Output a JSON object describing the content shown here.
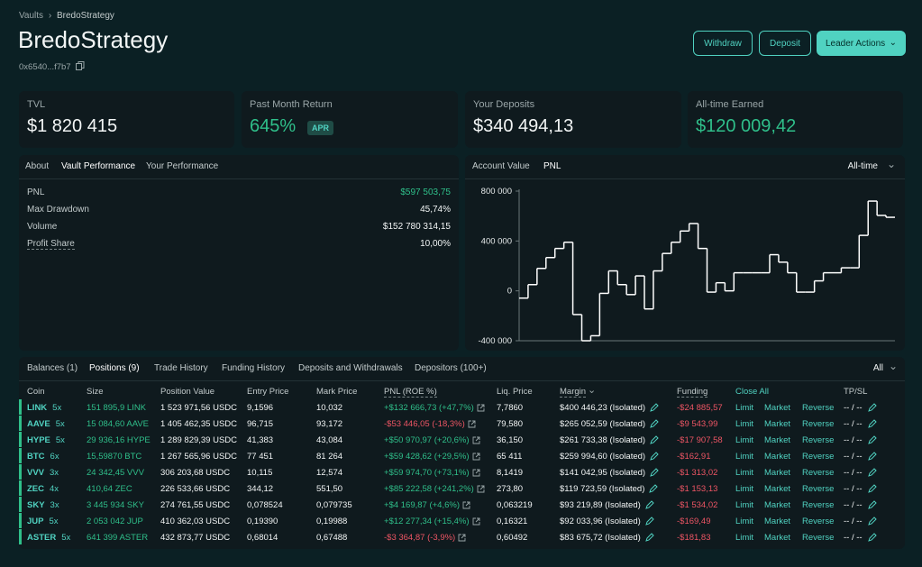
{
  "breadcrumb": {
    "parent": "Vaults",
    "current": "BredoStrategy"
  },
  "header": {
    "title": "BredoStrategy",
    "address": "0x6540...f7b7",
    "buttons": [
      "Withdraw",
      "Deposit",
      "Leader Actions"
    ]
  },
  "stats": [
    {
      "label": "TVL",
      "value": "$1 820 415"
    },
    {
      "label": "Past Month Return",
      "value": "645%",
      "badge": "APR"
    },
    {
      "label": "Your Deposits",
      "value": "$340 494,13"
    },
    {
      "label": "All-time Earned",
      "value": "$120 009,42"
    }
  ],
  "performance": {
    "tabs": [
      "About",
      "Vault Performance",
      "Your Performance"
    ],
    "active_tab": 1,
    "rows": [
      {
        "label": "PNL",
        "value": "$597 503,75"
      },
      {
        "label": "Max Drawdown",
        "value": "45,74%"
      },
      {
        "label": "Volume",
        "value": "$152 780 314,15"
      },
      {
        "label": "Profit Share",
        "value": "10,00%"
      }
    ]
  },
  "pnl_chart": {
    "type": "line",
    "tabs": [
      "Account Value",
      "PNL"
    ],
    "active_tab": 1,
    "range": "All-time",
    "color": "#ffffff",
    "values": [
      -58000,
      50000,
      180000,
      267000,
      340000,
      390000,
      -190000,
      -400000,
      -360000,
      -20000,
      160000,
      50000,
      -30000,
      120000,
      -145000,
      160000,
      300000,
      390000,
      480000,
      540000,
      340000,
      -10000,
      65000,
      0,
      145000,
      145000,
      145000,
      145000,
      290000,
      230000,
      145000,
      -10000,
      -10000,
      80000,
      145000,
      145000,
      185000,
      185000,
      445000,
      720000,
      605000,
      590000
    ],
    "ylim": [
      -400000,
      800000
    ],
    "yticks": [
      {
        "value": 800000,
        "label": "800 000"
      },
      {
        "value": 400000,
        "label": "400 000"
      },
      0,
      {
        "value": -400000,
        "label": "-400 000"
      }
    ]
  },
  "positions": {
    "tabs": [
      "Balances (1)",
      "Positions (9)",
      "Trade History",
      "Funding History",
      "Deposits and Withdrawals",
      "Depositors (100+)"
    ],
    "active_tab": 1,
    "filter": "All",
    "columns": [
      "Coin",
      "Size",
      "Position Value",
      "Entry Price",
      "Mark Price",
      "PNL (ROE %)",
      "Liq. Price",
      "Margin",
      "Funding",
      "Close All",
      "TP/SL"
    ],
    "rows": [
      {
        "coin": "LINK",
        "leverage": "5x",
        "size": "151 895,9 LINK",
        "position_value": "1 523 971,56 USDC",
        "entry_price": "9,1596",
        "mark_price": "10,032",
        "pnl": "+$132 666,73 (+47,7%)",
        "liq_price": "7,7860",
        "margin": "$400 446,23 (Isolated)",
        "funding": "-$24 885,57",
        "actions": [
          "Limit",
          "Market",
          "Reverse"
        ],
        "tpsl": "-- / --"
      },
      {
        "coin": "AAVE",
        "leverage": "5x",
        "size": "15 084,60 AAVE",
        "position_value": "1 405 462,35 USDC",
        "entry_price": "96,715",
        "mark_price": "93,172",
        "pnl": "-$53 446,05 (-18,3%)",
        "liq_price": "79,580",
        "margin": "$265 052,59 (Isolated)",
        "funding": "-$9 543,99",
        "actions": [
          "Limit",
          "Market",
          "Reverse"
        ],
        "tpsl": "-- / --"
      },
      {
        "coin": "HYPE",
        "leverage": "5x",
        "size": "29 936,16 HYPE",
        "position_value": "1 289 829,39 USDC",
        "entry_price": "41,383",
        "mark_price": "43,084",
        "pnl": "+$50 970,97 (+20,6%)",
        "liq_price": "36,150",
        "margin": "$261 733,38 (Isolated)",
        "funding": "-$17 907,58",
        "actions": [
          "Limit",
          "Market",
          "Reverse"
        ],
        "tpsl": "-- / --"
      },
      {
        "coin": "BTC",
        "leverage": "6x",
        "size": "15,59870 BTC",
        "position_value": "1 267 565,96 USDC",
        "entry_price": "77 451",
        "mark_price": "81 264",
        "pnl": "+$59 428,62 (+29,5%)",
        "liq_price": "65 411",
        "margin": "$259 994,60 (Isolated)",
        "funding": "-$162,91",
        "actions": [
          "Limit",
          "Market",
          "Reverse"
        ],
        "tpsl": "-- / --"
      },
      {
        "coin": "VVV",
        "leverage": "3x",
        "size": "24 342,45 VVV",
        "position_value": "306 203,68 USDC",
        "entry_price": "10,115",
        "mark_price": "12,574",
        "pnl": "+$59 974,70 (+73,1%)",
        "liq_price": "8,1419",
        "margin": "$141 042,95 (Isolated)",
        "funding": "-$1 313,02",
        "actions": [
          "Limit",
          "Market",
          "Reverse"
        ],
        "tpsl": "-- / --"
      },
      {
        "coin": "ZEC",
        "leverage": "4x",
        "size": "410,64 ZEC",
        "position_value": "226 533,66 USDC",
        "entry_price": "344,12",
        "mark_price": "551,50",
        "pnl": "+$85 222,58 (+241,2%)",
        "liq_price": "273,80",
        "margin": "$119 723,59 (Isolated)",
        "funding": "-$1 153,13",
        "actions": [
          "Limit",
          "Market",
          "Reverse"
        ],
        "tpsl": "-- / --"
      },
      {
        "coin": "SKY",
        "leverage": "3x",
        "size": "3 445 934 SKY",
        "position_value": "274 761,55 USDC",
        "entry_price": "0,078524",
        "mark_price": "0,079735",
        "pnl": "+$4 169,87 (+4,6%)",
        "liq_price": "0,063219",
        "margin": "$93 219,89 (Isolated)",
        "funding": "-$1 534,02",
        "actions": [
          "Limit",
          "Market",
          "Reverse"
        ],
        "tpsl": "-- / --"
      },
      {
        "coin": "JUP",
        "leverage": "5x",
        "size": "2 053 042 JUP",
        "position_value": "410 362,03 USDC",
        "entry_price": "0,19390",
        "mark_price": "0,19988",
        "pnl": "+$12 277,34 (+15,4%)",
        "liq_price": "0,16321",
        "margin": "$92 033,96 (Isolated)",
        "funding": "-$169,49",
        "actions": [
          "Limit",
          "Market",
          "Reverse"
        ],
        "tpsl": "-- / --"
      },
      {
        "coin": "ASTER",
        "leverage": "5x",
        "size": "641 399 ASTER",
        "position_value": "432 873,77 USDC",
        "entry_price": "0,68014",
        "mark_price": "0,67488",
        "pnl": "-$3 364,87 (-3,9%)",
        "liq_price": "0,60492",
        "margin": "$83 675,72 (Isolated)",
        "funding": "-$181,83",
        "actions": [
          "Limit",
          "Market",
          "Reverse"
        ],
        "tpsl": "-- / --"
      }
    ]
  }
}
